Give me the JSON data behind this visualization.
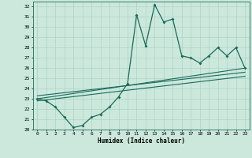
{
  "xlabel": "Humidex (Indice chaleur)",
  "bg_color": "#cce8dd",
  "grid_color": "#aad4c4",
  "line_color": "#1a6b5a",
  "xlim": [
    -0.5,
    23.5
  ],
  "ylim": [
    20,
    32.5
  ],
  "yticks": [
    20,
    21,
    22,
    23,
    24,
    25,
    26,
    27,
    28,
    29,
    30,
    31,
    32
  ],
  "xticks": [
    0,
    1,
    2,
    3,
    4,
    5,
    6,
    7,
    8,
    9,
    10,
    11,
    12,
    13,
    14,
    15,
    16,
    17,
    18,
    19,
    20,
    21,
    22,
    23
  ],
  "series1_x": [
    0,
    1,
    2,
    3,
    4,
    5,
    6,
    7,
    8,
    9,
    10,
    11,
    12,
    13,
    14,
    15,
    16,
    17,
    18,
    19,
    20,
    21,
    22,
    23
  ],
  "series1_y": [
    23.0,
    22.8,
    22.2,
    21.2,
    20.2,
    20.4,
    21.2,
    21.5,
    22.2,
    23.2,
    24.5,
    31.2,
    28.2,
    32.2,
    30.5,
    30.8,
    27.2,
    27.0,
    26.5,
    27.2,
    28.0,
    27.2,
    28.0,
    26.0
  ],
  "series2_x": [
    0,
    23
  ],
  "series2_y": [
    23.0,
    26.0
  ],
  "series3_x": [
    0,
    23
  ],
  "series3_y": [
    23.3,
    25.6
  ],
  "series4_x": [
    0,
    23
  ],
  "series4_y": [
    22.8,
    25.2
  ]
}
